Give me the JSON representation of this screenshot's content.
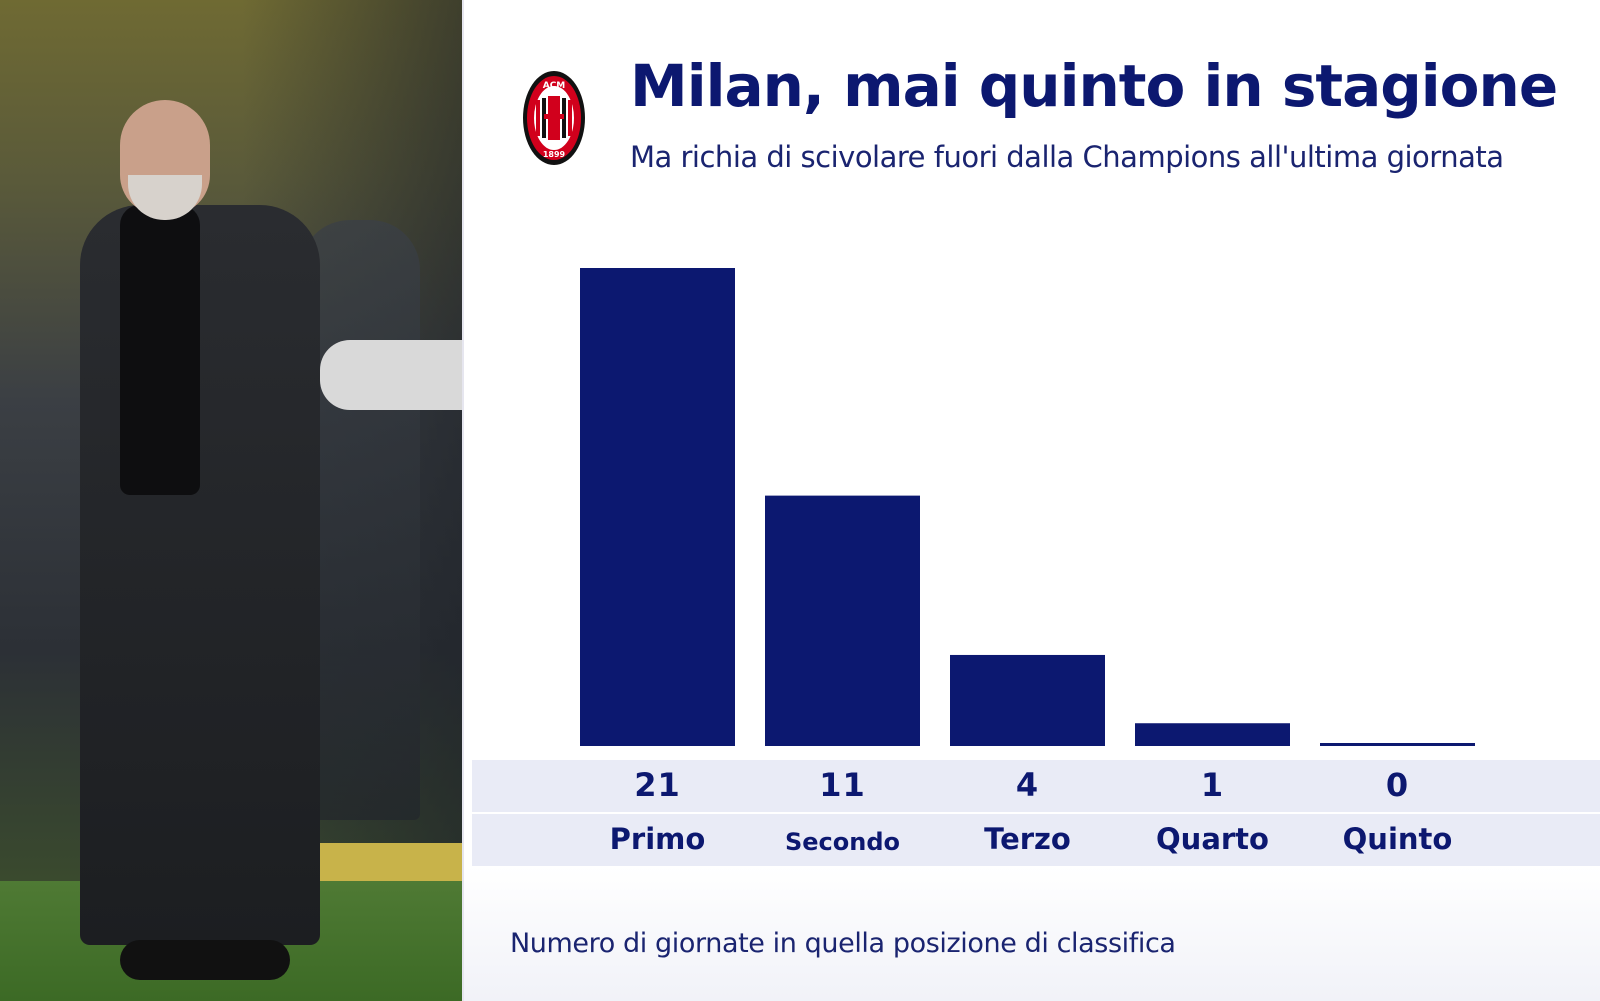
{
  "header": {
    "title": "Milan, mai quinto in stagione",
    "subtitle": "Ma richia di scivolare fuori dalla Champions all'ultima giornata",
    "logo_text_top": "ACM",
    "logo_text_bottom": "1899"
  },
  "footnote": "Numero di giornate in quella posizione di classifica",
  "colors": {
    "bar": "#0c1870",
    "label_band": "#e9ebf6",
    "logo_red": "#d1001c",
    "logo_black": "#111111"
  },
  "chart_data": {
    "type": "bar",
    "categories": [
      "Primo",
      "Secondo",
      "Terzo",
      "Quarto",
      "Quinto"
    ],
    "values": [
      21,
      11,
      4,
      1,
      0
    ],
    "value_labels": [
      "21",
      "11",
      "4",
      "1",
      "0"
    ],
    "ylim": [
      0,
      21
    ],
    "grid": false,
    "legend": "none"
  }
}
